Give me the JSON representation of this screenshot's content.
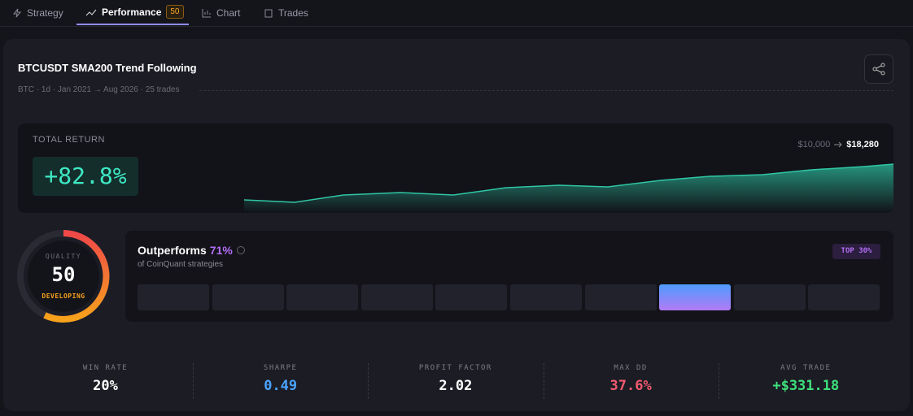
{
  "tabs": [
    {
      "label": "Strategy"
    },
    {
      "label": "Performance",
      "badge": "50"
    },
    {
      "label": "Chart"
    },
    {
      "label": "Trades"
    }
  ],
  "header": {
    "title": "BTCUSDT SMA200 Trend Following",
    "subtitle": "BTC · 1d · Jan 2021 → Aug 2026 · 25 trades"
  },
  "total_return": {
    "label": "TOTAL RETURN",
    "value": "+82.8%",
    "start_capital": "$10,000",
    "end_capital": "$18,280"
  },
  "quality": {
    "label": "QUALITY",
    "score": "50",
    "rating": "DEVELOPING"
  },
  "percentile": {
    "title": "Outperforms",
    "value": "71%",
    "subtitle": "of CoinQuant strategies",
    "badge": "TOP 30%"
  },
  "stats": [
    {
      "label": "WIN RATE",
      "value": "20%",
      "color": "#ffffff"
    },
    {
      "label": "SHARPE",
      "value": "0.49",
      "color": "#4aa3ff"
    },
    {
      "label": "PROFIT FACTOR",
      "value": "2.02",
      "color": "#ffffff"
    },
    {
      "label": "MAX DD",
      "value": "37.6%",
      "color": "#f25a6e"
    },
    {
      "label": "AVG TRADE",
      "value": "+$331.18",
      "color": "#3ee07a"
    }
  ]
}
